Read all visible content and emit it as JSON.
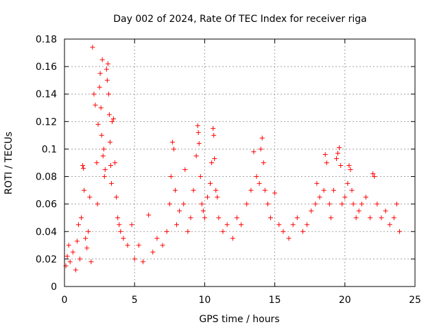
{
  "chart_data": {
    "type": "scatter",
    "title": "Day 002 of 2024, Rate Of TEC Index for receiver riga",
    "xlabel": "GPS time / hours",
    "ylabel": "ROTI / TECUs",
    "xlim": [
      0,
      25
    ],
    "ylim": [
      0,
      0.18
    ],
    "xticks": [
      0,
      5,
      10,
      15,
      20,
      25
    ],
    "yticks": [
      0,
      0.02,
      0.04,
      0.06,
      0.08,
      0.1,
      0.12,
      0.14,
      0.16,
      0.18
    ],
    "xtick_labels": [
      "0",
      "5",
      "10",
      "15",
      "20",
      "25"
    ],
    "ytick_labels": [
      "0",
      "0.02",
      "0.04",
      "0.06",
      "0.08",
      "0.1",
      "0.12",
      "0.14",
      "0.16",
      "0.18"
    ],
    "grid": true,
    "marker": "+",
    "color": "#ff0000",
    "series": [
      {
        "points": [
          [
            0.1,
            0.015
          ],
          [
            0.2,
            0.022
          ],
          [
            0.3,
            0.03
          ],
          [
            0.4,
            0.018
          ],
          [
            0.6,
            0.025
          ],
          [
            0.8,
            0.012
          ],
          [
            0.9,
            0.033
          ],
          [
            1.0,
            0.045
          ],
          [
            1.1,
            0.02
          ],
          [
            1.2,
            0.05
          ],
          [
            1.3,
            0.088
          ],
          [
            1.35,
            0.086
          ],
          [
            1.4,
            0.07
          ],
          [
            1.5,
            0.035
          ],
          [
            1.6,
            0.028
          ],
          [
            1.7,
            0.04
          ],
          [
            1.8,
            0.065
          ],
          [
            1.9,
            0.018
          ],
          [
            2.0,
            0.174
          ],
          [
            2.1,
            0.14
          ],
          [
            2.2,
            0.132
          ],
          [
            2.3,
            0.09
          ],
          [
            2.35,
            0.06
          ],
          [
            2.4,
            0.118
          ],
          [
            2.5,
            0.145
          ],
          [
            2.55,
            0.155
          ],
          [
            2.6,
            0.13
          ],
          [
            2.65,
            0.11
          ],
          [
            2.7,
            0.165
          ],
          [
            2.75,
            0.095
          ],
          [
            2.8,
            0.1
          ],
          [
            2.85,
            0.08
          ],
          [
            2.9,
            0.085
          ],
          [
            3.0,
            0.158
          ],
          [
            3.05,
            0.15
          ],
          [
            3.1,
            0.162
          ],
          [
            3.15,
            0.14
          ],
          [
            3.2,
            0.125
          ],
          [
            3.25,
            0.105
          ],
          [
            3.3,
            0.088
          ],
          [
            3.35,
            0.075
          ],
          [
            3.4,
            0.12
          ],
          [
            3.5,
            0.122
          ],
          [
            3.6,
            0.09
          ],
          [
            3.7,
            0.065
          ],
          [
            3.8,
            0.05
          ],
          [
            3.9,
            0.045
          ],
          [
            4.0,
            0.04
          ],
          [
            4.2,
            0.035
          ],
          [
            4.5,
            0.03
          ],
          [
            4.8,
            0.045
          ],
          [
            5.0,
            0.02
          ],
          [
            5.3,
            0.03
          ],
          [
            5.6,
            0.018
          ],
          [
            6.0,
            0.052
          ],
          [
            6.3,
            0.025
          ],
          [
            6.6,
            0.035
          ],
          [
            7.0,
            0.03
          ],
          [
            7.3,
            0.04
          ],
          [
            7.5,
            0.06
          ],
          [
            7.6,
            0.08
          ],
          [
            7.7,
            0.105
          ],
          [
            7.8,
            0.1
          ],
          [
            7.9,
            0.07
          ],
          [
            8.0,
            0.045
          ],
          [
            8.2,
            0.055
          ],
          [
            8.5,
            0.06
          ],
          [
            8.6,
            0.085
          ],
          [
            8.8,
            0.04
          ],
          [
            9.0,
            0.05
          ],
          [
            9.2,
            0.07
          ],
          [
            9.4,
            0.095
          ],
          [
            9.5,
            0.117
          ],
          [
            9.55,
            0.112
          ],
          [
            9.6,
            0.104
          ],
          [
            9.7,
            0.08
          ],
          [
            9.8,
            0.06
          ],
          [
            9.9,
            0.055
          ],
          [
            10.0,
            0.05
          ],
          [
            10.2,
            0.065
          ],
          [
            10.4,
            0.075
          ],
          [
            10.5,
            0.09
          ],
          [
            10.6,
            0.115
          ],
          [
            10.65,
            0.11
          ],
          [
            10.7,
            0.093
          ],
          [
            10.8,
            0.07
          ],
          [
            10.9,
            0.065
          ],
          [
            11.0,
            0.05
          ],
          [
            11.3,
            0.04
          ],
          [
            11.6,
            0.045
          ],
          [
            12.0,
            0.035
          ],
          [
            12.3,
            0.05
          ],
          [
            12.6,
            0.045
          ],
          [
            13.0,
            0.06
          ],
          [
            13.3,
            0.07
          ],
          [
            13.5,
            0.098
          ],
          [
            13.7,
            0.08
          ],
          [
            13.9,
            0.075
          ],
          [
            14.0,
            0.1
          ],
          [
            14.1,
            0.108
          ],
          [
            14.2,
            0.09
          ],
          [
            14.3,
            0.07
          ],
          [
            14.5,
            0.06
          ],
          [
            14.7,
            0.05
          ],
          [
            15.0,
            0.068
          ],
          [
            15.3,
            0.045
          ],
          [
            15.6,
            0.04
          ],
          [
            16.0,
            0.035
          ],
          [
            16.3,
            0.045
          ],
          [
            16.6,
            0.05
          ],
          [
            17.0,
            0.04
          ],
          [
            17.3,
            0.045
          ],
          [
            17.6,
            0.055
          ],
          [
            17.9,
            0.06
          ],
          [
            18.0,
            0.075
          ],
          [
            18.2,
            0.065
          ],
          [
            18.5,
            0.07
          ],
          [
            18.6,
            0.096
          ],
          [
            18.7,
            0.09
          ],
          [
            18.9,
            0.06
          ],
          [
            19.0,
            0.05
          ],
          [
            19.2,
            0.07
          ],
          [
            19.4,
            0.093
          ],
          [
            19.5,
            0.097
          ],
          [
            19.6,
            0.101
          ],
          [
            19.7,
            0.088
          ],
          [
            19.8,
            0.06
          ],
          [
            20.0,
            0.065
          ],
          [
            20.2,
            0.075
          ],
          [
            20.3,
            0.088
          ],
          [
            20.4,
            0.085
          ],
          [
            20.5,
            0.07
          ],
          [
            20.6,
            0.06
          ],
          [
            20.8,
            0.05
          ],
          [
            21.0,
            0.055
          ],
          [
            21.2,
            0.06
          ],
          [
            21.5,
            0.065
          ],
          [
            21.8,
            0.05
          ],
          [
            22.0,
            0.082
          ],
          [
            22.1,
            0.08
          ],
          [
            22.3,
            0.06
          ],
          [
            22.6,
            0.05
          ],
          [
            22.9,
            0.055
          ],
          [
            23.2,
            0.045
          ],
          [
            23.5,
            0.05
          ],
          [
            23.7,
            0.06
          ],
          [
            23.9,
            0.04
          ]
        ]
      }
    ]
  }
}
